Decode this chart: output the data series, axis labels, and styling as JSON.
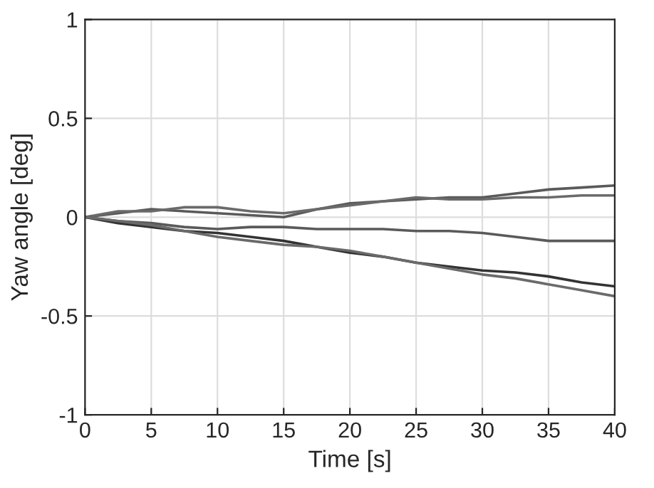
{
  "chart_data": {
    "type": "line",
    "xlabel": "Time [s]",
    "ylabel": "Yaw angle [deg]",
    "x": [
      0,
      2.5,
      5,
      7.5,
      10,
      12.5,
      15,
      17.5,
      20,
      22.5,
      25,
      27.5,
      30,
      32.5,
      35,
      37.5,
      40
    ],
    "series": [
      {
        "color": "#5a5a5a",
        "values": [
          0,
          0.02,
          0.04,
          0.03,
          0.02,
          0.01,
          0.0,
          0.04,
          0.07,
          0.08,
          0.09,
          0.1,
          0.1,
          0.12,
          0.14,
          0.15,
          0.16
        ]
      },
      {
        "color": "#6a6a6a",
        "values": [
          0,
          0.03,
          0.03,
          0.05,
          0.05,
          0.03,
          0.02,
          0.04,
          0.06,
          0.08,
          0.1,
          0.09,
          0.09,
          0.1,
          0.1,
          0.11,
          0.11
        ]
      },
      {
        "color": "#5a5a5a",
        "values": [
          0,
          -0.02,
          -0.03,
          -0.05,
          -0.06,
          -0.05,
          -0.05,
          -0.06,
          -0.06,
          -0.06,
          -0.07,
          -0.07,
          -0.08,
          -0.1,
          -0.12,
          -0.12,
          -0.12
        ]
      },
      {
        "color": "#333333",
        "values": [
          0,
          -0.03,
          -0.05,
          -0.07,
          -0.08,
          -0.1,
          -0.12,
          -0.15,
          -0.18,
          -0.2,
          -0.23,
          -0.25,
          -0.27,
          -0.28,
          -0.3,
          -0.33,
          -0.35
        ]
      },
      {
        "color": "#6a6a6a",
        "values": [
          0,
          -0.02,
          -0.04,
          -0.07,
          -0.1,
          -0.12,
          -0.14,
          -0.15,
          -0.17,
          -0.2,
          -0.23,
          -0.26,
          -0.29,
          -0.31,
          -0.34,
          -0.37,
          -0.4
        ]
      }
    ],
    "xlim": [
      0,
      40
    ],
    "ylim": [
      -1,
      1
    ],
    "xticks": [
      0,
      5,
      10,
      15,
      20,
      25,
      30,
      35,
      40
    ],
    "yticks": [
      -1,
      -0.5,
      0,
      0.5,
      1
    ],
    "grid": true,
    "marker": "none",
    "line_style": "solid"
  }
}
